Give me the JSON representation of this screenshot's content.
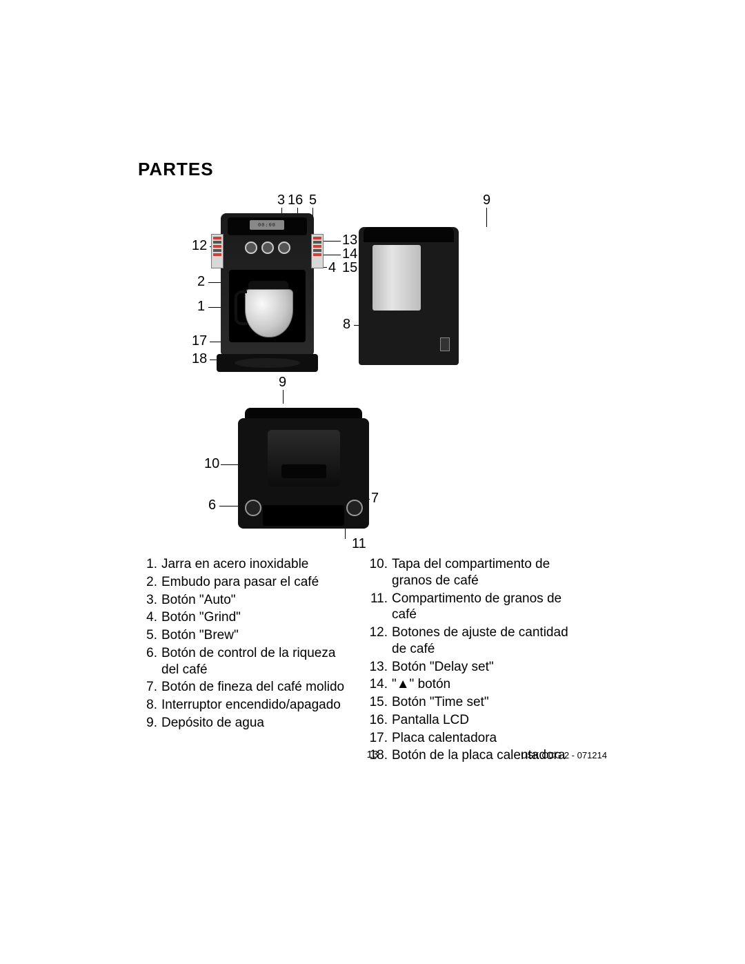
{
  "title": "PARTES",
  "footer": {
    "page": "13",
    "docid": "USK CCG 2  - 071214"
  },
  "diagram": {
    "lcd_text": "00:00",
    "callouts": {
      "n1": "1",
      "n2": "2",
      "n3": "3",
      "n4": "4",
      "n5": "5",
      "n6": "6",
      "n7": "7",
      "n8": "8",
      "n9a": "9",
      "n9b": "9",
      "n10": "10",
      "n11": "11",
      "n12": "12",
      "n13": "13",
      "n14": "14",
      "n15": "15",
      "n16": "16",
      "n17": "17",
      "n18": "18"
    }
  },
  "parts_left": [
    {
      "n": "1.",
      "t": "Jarra en acero inoxidable"
    },
    {
      "n": "2.",
      "t": "Embudo para pasar el café"
    },
    {
      "n": "3.",
      "t": "Botón \"Auto\""
    },
    {
      "n": "4.",
      "t": "Botón \"Grind\""
    },
    {
      "n": "5.",
      "t": "Botón \"Brew\""
    },
    {
      "n": "6.",
      "t": "Botón de control de la riqueza del café"
    },
    {
      "n": "7.",
      "t": "Botón de fineza del café molido"
    },
    {
      "n": "8.",
      "t": "Interruptor encendido/apagado"
    },
    {
      "n": "9.",
      "t": "Depósito de agua"
    }
  ],
  "parts_right": [
    {
      "n": "10.",
      "t": "Tapa del compartimento de granos de café"
    },
    {
      "n": "11.",
      "t": "Compartimento de granos de café"
    },
    {
      "n": "12.",
      "t": "Botones de ajuste de cantidad de café"
    },
    {
      "n": "13.",
      "t": "Botón \"Delay set\""
    },
    {
      "n": "14.",
      "t": "\"▲\" botón"
    },
    {
      "n": "15.",
      "t": "Botón \"Time set\""
    },
    {
      "n": "16.",
      "t": "Pantalla LCD"
    },
    {
      "n": "17.",
      "t": "Placa calentadora"
    },
    {
      "n": "18.",
      "t": "Botón de la placa calentadora"
    }
  ]
}
